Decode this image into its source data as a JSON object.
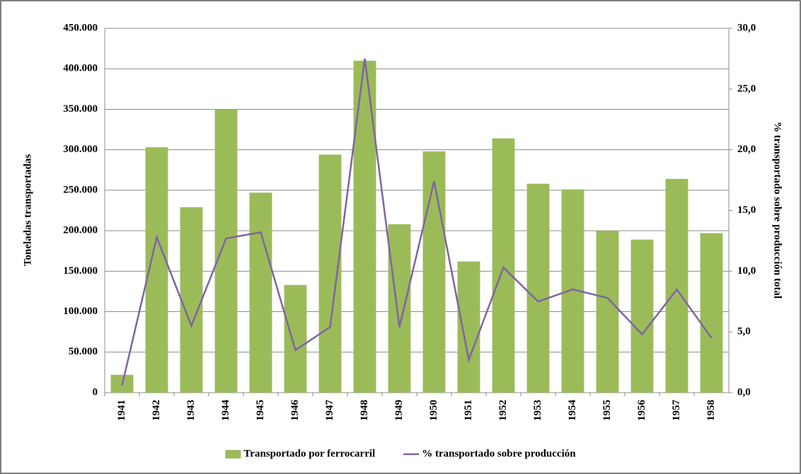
{
  "chart_data": {
    "type": "bar",
    "y_label": "Toneladas transportadas",
    "y2_label": "% transportado sobre producción total",
    "categories": [
      "1941",
      "1942",
      "1943",
      "1944",
      "1945",
      "1946",
      "1947",
      "1948",
      "1949",
      "1950",
      "1951",
      "1952",
      "1953",
      "1954",
      "1955",
      "1956",
      "1957",
      "1958"
    ],
    "series": [
      {
        "name": "Transportado por ferrocarril",
        "type": "bar",
        "color": "#9bbb59",
        "values": [
          22000,
          303000,
          229000,
          350000,
          247000,
          133000,
          294000,
          410000,
          208000,
          298000,
          162000,
          314000,
          258000,
          251000,
          200000,
          189000,
          264000,
          197000
        ]
      },
      {
        "name": "% transportado sobre producción",
        "type": "line",
        "axis": "y2",
        "color": "#8064a2",
        "values": [
          0.6,
          12.8,
          5.5,
          12.7,
          13.2,
          3.5,
          5.4,
          27.5,
          5.4,
          17.4,
          2.7,
          10.3,
          7.5,
          8.5,
          7.8,
          4.8,
          8.5,
          4.5
        ]
      }
    ],
    "ylim": [
      0,
      450000
    ],
    "yticks": [
      0,
      {
        "value": 50000,
        "label": "50.000"
      },
      {
        "value": 100000,
        "label": "100.000"
      },
      {
        "value": 150000,
        "label": "150.000"
      },
      {
        "value": 200000,
        "label": "200.000"
      },
      {
        "value": 250000,
        "label": "250.000"
      },
      {
        "value": 300000,
        "label": "300.000"
      },
      {
        "value": 350000,
        "label": "350.000"
      },
      {
        "value": 400000,
        "label": "400.000"
      },
      {
        "value": 450000,
        "label": "450.000"
      }
    ],
    "y2lim": [
      0,
      30
    ],
    "y2ticks": [
      {
        "value": 0,
        "label": "0,0"
      },
      {
        "value": 5,
        "label": "5,0"
      },
      {
        "value": 10,
        "label": "10,0"
      },
      {
        "value": 15,
        "label": "15,0"
      },
      {
        "value": 20,
        "label": "20,0"
      },
      {
        "value": 25,
        "label": "25,0"
      },
      {
        "value": 30,
        "label": "30,0"
      }
    ],
    "grid": true,
    "legend": "bottom"
  }
}
